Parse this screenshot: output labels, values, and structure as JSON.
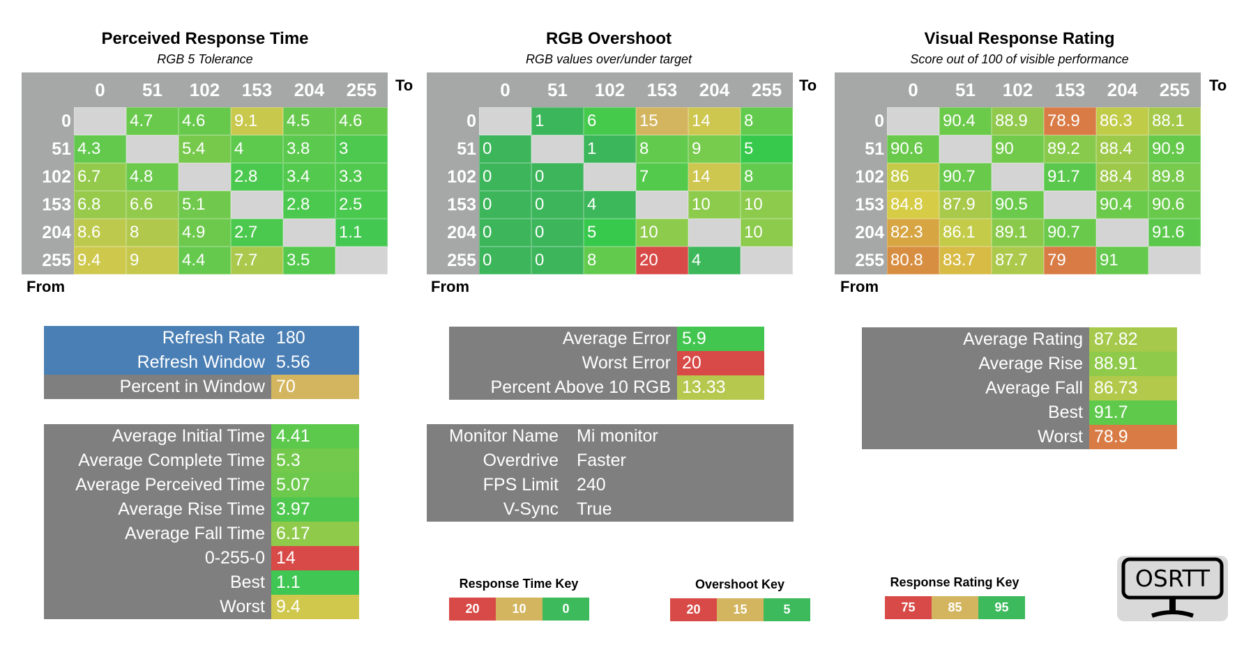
{
  "axis_values": [
    "0",
    "51",
    "102",
    "153",
    "204",
    "255"
  ],
  "to_label": "To",
  "from_label": "From",
  "diagonal_color": "#d4d4d4",
  "matrices": [
    {
      "title": "Perceived Response Time",
      "subtitle": "RGB 5 Tolerance",
      "rows": [
        [
          "",
          "4.7",
          "4.6",
          "9.1",
          "4.5",
          "4.6"
        ],
        [
          "4.3",
          "",
          "5.4",
          "4",
          "3.8",
          "3"
        ],
        [
          "6.7",
          "4.8",
          "",
          "2.8",
          "3.4",
          "3.3"
        ],
        [
          "6.8",
          "6.6",
          "5.1",
          "",
          "2.8",
          "2.5"
        ],
        [
          "8.6",
          "8",
          "4.9",
          "2.7",
          "",
          "1.1"
        ],
        [
          "9.4",
          "9",
          "4.4",
          "7.7",
          "3.5",
          ""
        ]
      ],
      "color_scale": [
        [
          0,
          "#3ec852"
        ],
        [
          3,
          "#4cc94e"
        ],
        [
          5,
          "#6ec94c"
        ],
        [
          7,
          "#9bca4b"
        ],
        [
          9.5,
          "#d0c84d"
        ],
        [
          15,
          "#d6a052"
        ],
        [
          20,
          "#d84a47"
        ]
      ]
    },
    {
      "title": "RGB Overshoot",
      "subtitle": "RGB values over/under target",
      "rows": [
        [
          "",
          "1",
          "6",
          "15",
          "14",
          "8"
        ],
        [
          "0",
          "",
          "1",
          "8",
          "9",
          "5"
        ],
        [
          "0",
          "0",
          "",
          "7",
          "14",
          "8"
        ],
        [
          "0",
          "0",
          "4",
          "",
          "10",
          "10"
        ],
        [
          "0",
          "0",
          "5",
          "10",
          "",
          "10"
        ],
        [
          "0",
          "0",
          "8",
          "20",
          "4",
          ""
        ]
      ],
      "color_scale": [
        [
          0,
          "#3cb55b"
        ],
        [
          4,
          "#3cb75a"
        ],
        [
          5,
          "#36c94b"
        ],
        [
          8,
          "#62cb4d"
        ],
        [
          10,
          "#8ccb4c"
        ],
        [
          14,
          "#cdc64f"
        ],
        [
          15,
          "#d4b55f"
        ],
        [
          20,
          "#d84a47"
        ]
      ]
    },
    {
      "title": "Visual Response Rating",
      "subtitle": "Score out of 100 of visible performance",
      "rows": [
        [
          "",
          "90.4",
          "88.9",
          "78.9",
          "86.3",
          "88.1"
        ],
        [
          "90.6",
          "",
          "90",
          "89.2",
          "88.4",
          "90.9"
        ],
        [
          "86",
          "90.7",
          "",
          "91.7",
          "88.4",
          "89.8"
        ],
        [
          "84.8",
          "87.9",
          "90.5",
          "",
          "90.4",
          "90.6"
        ],
        [
          "82.3",
          "86.1",
          "89.1",
          "90.7",
          "",
          "91.6"
        ],
        [
          "80.8",
          "83.7",
          "87.7",
          "79",
          "91",
          ""
        ]
      ],
      "color_scale": [
        [
          79,
          "#d97b45"
        ],
        [
          81,
          "#d8903f"
        ],
        [
          84.8,
          "#d6cc46"
        ],
        [
          88,
          "#a8c94b"
        ],
        [
          90,
          "#72ca4b"
        ],
        [
          92,
          "#55c84c"
        ],
        [
          95,
          "#3dba5c"
        ]
      ]
    }
  ],
  "summaries": {
    "refresh": [
      {
        "label": "Refresh Rate",
        "value": "180",
        "label_color": "#4a7fb5",
        "value_color": "#4a7fb5"
      },
      {
        "label": "Refresh Window",
        "value": "5.56",
        "label_color": "#4a7fb5",
        "value_color": "#4a7fb5"
      },
      {
        "label": "Percent in Window",
        "value": "70",
        "label_color": "#7f7f7f",
        "value_color": "#d4b55f"
      }
    ],
    "times": [
      {
        "label": "Average Initial Time",
        "value": "4.41",
        "value_color": "#5cc94d"
      },
      {
        "label": "Average Complete Time",
        "value": "5.3",
        "value_color": "#72c94b"
      },
      {
        "label": "Average Perceived Time",
        "value": "5.07",
        "value_color": "#6cc94c"
      },
      {
        "label": "Average Rise Time",
        "value": "3.97",
        "value_color": "#4fc74e"
      },
      {
        "label": "Average Fall Time",
        "value": "6.17",
        "value_color": "#8fca4b"
      },
      {
        "label": "0-255-0",
        "value": "14",
        "value_color": "#d84a47"
      },
      {
        "label": "Best",
        "value": "1.1",
        "value_color": "#3fc653"
      },
      {
        "label": "Worst",
        "value": "9.4",
        "value_color": "#cfc84d"
      }
    ],
    "overshoot": [
      {
        "label": "Average Error",
        "value": "5.9",
        "value_color": "#42c64f"
      },
      {
        "label": "Worst Error",
        "value": "20",
        "value_color": "#d84a47"
      },
      {
        "label": "Percent Above 10 RGB",
        "value": "13.33",
        "value_color": "#b6c84d"
      }
    ],
    "monitor": [
      {
        "label": "Monitor Name",
        "value": "Mi monitor"
      },
      {
        "label": "Overdrive",
        "value": "Faster"
      },
      {
        "label": "FPS Limit",
        "value": "240"
      },
      {
        "label": "V-Sync",
        "value": "True"
      }
    ],
    "rating": [
      {
        "label": "Average Rating",
        "value": "87.82",
        "value_color": "#a6c94b"
      },
      {
        "label": "Average Rise",
        "value": "88.91",
        "value_color": "#8fca4b"
      },
      {
        "label": "Average Fall",
        "value": "86.73",
        "value_color": "#b2c94b"
      },
      {
        "label": "Best",
        "value": "91.7",
        "value_color": "#5ec94b"
      },
      {
        "label": "Worst",
        "value": "78.9",
        "value_color": "#d97b45"
      }
    ]
  },
  "keys": [
    {
      "title": "Response Time Key",
      "items": [
        {
          "label": "20",
          "color": "#d84a47"
        },
        {
          "label": "10",
          "color": "#d4b55f"
        },
        {
          "label": "0",
          "color": "#3dba5c"
        }
      ]
    },
    {
      "title": "Overshoot Key",
      "items": [
        {
          "label": "20",
          "color": "#d84a47"
        },
        {
          "label": "15",
          "color": "#d4b55f"
        },
        {
          "label": "5",
          "color": "#3dba5c"
        }
      ]
    },
    {
      "title": "Response Rating Key",
      "items": [
        {
          "label": "75",
          "color": "#d84a47"
        },
        {
          "label": "85",
          "color": "#d4b55f"
        },
        {
          "label": "95",
          "color": "#3dba5c"
        }
      ]
    }
  ],
  "logo": {
    "text": "OSRTT",
    "icon": "monitor-icon"
  }
}
